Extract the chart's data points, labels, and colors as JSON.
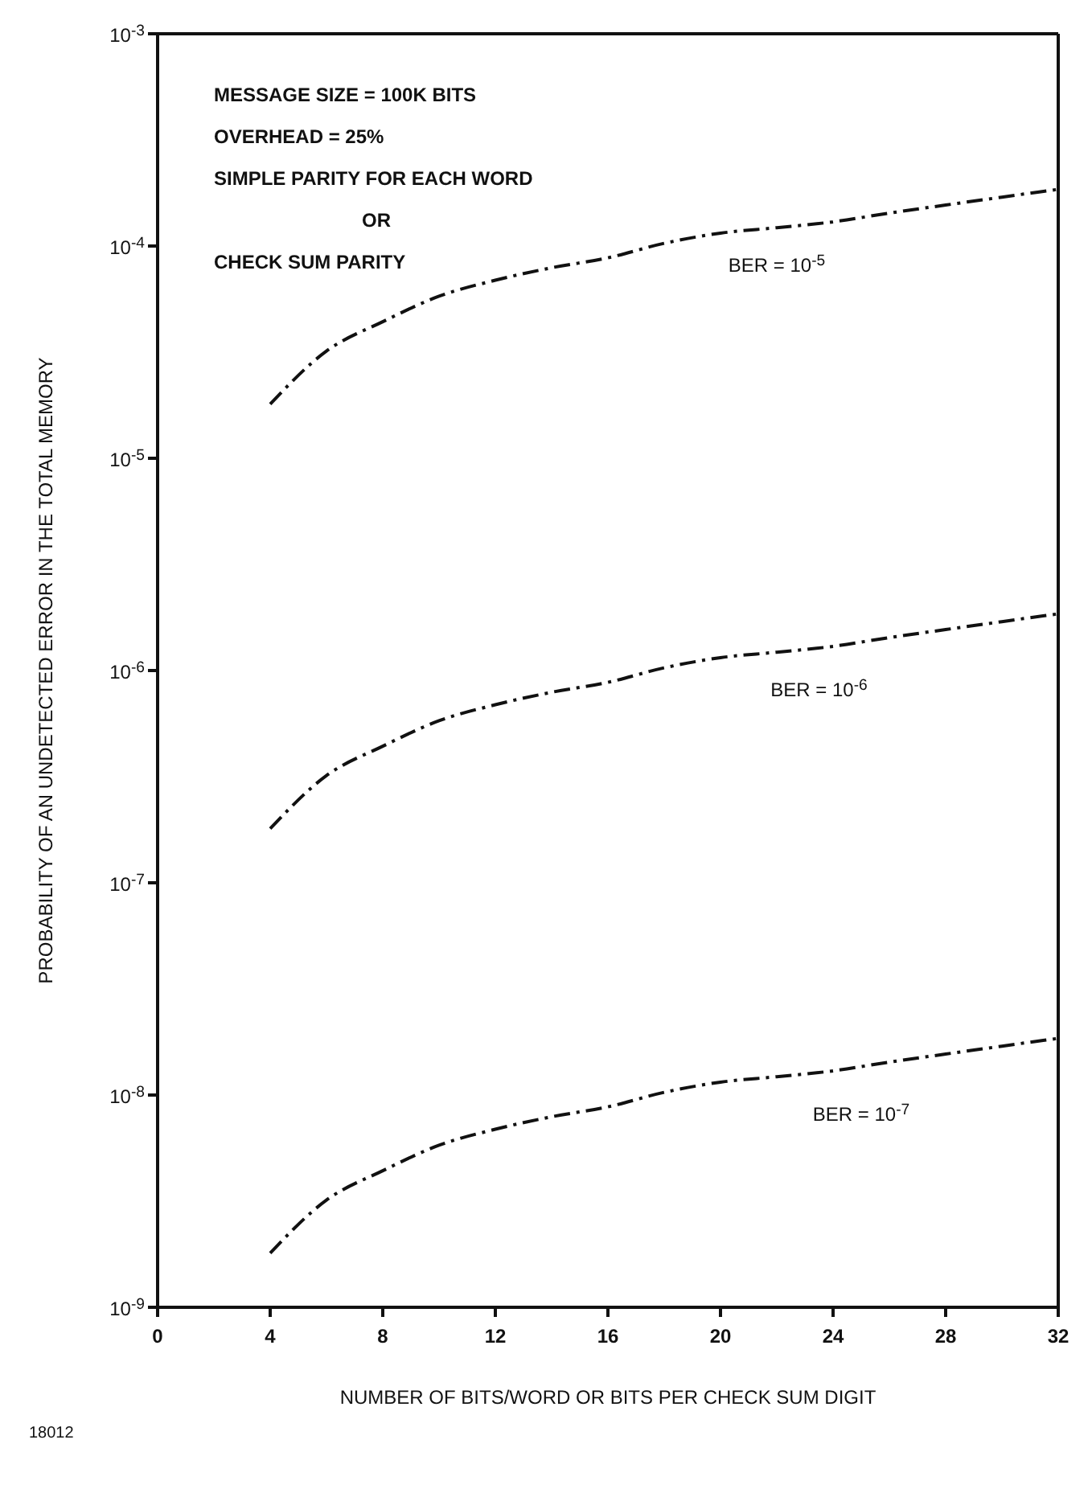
{
  "chart_data": {
    "type": "line",
    "xlabel": "NUMBER OF BITS/WORD OR BITS PER CHECK SUM DIGIT",
    "ylabel": "PROBABILITY OF AN UNDETECTED ERROR IN THE TOTAL MEMORY",
    "x": [
      4,
      6,
      8,
      10,
      12,
      14,
      16,
      18,
      20,
      22,
      24,
      26,
      28,
      30,
      32
    ],
    "series": [
      {
        "color": "#111111",
        "values": [
          1.8e-05,
          3.2e-05,
          4.4e-05,
          5.8e-05,
          6.9e-05,
          7.9e-05,
          8.8e-05,
          0.000103,
          0.000115,
          0.000122,
          0.00013,
          0.000143,
          0.000156,
          0.00017,
          0.000185
        ]
      },
      {
        "color": "#111111",
        "values": [
          1.8e-07,
          3.2e-07,
          4.4e-07,
          5.8e-07,
          6.9e-07,
          7.9e-07,
          8.8e-07,
          1.03e-06,
          1.15e-06,
          1.22e-06,
          1.3e-06,
          1.43e-06,
          1.56e-06,
          1.7e-06,
          1.85e-06
        ]
      },
      {
        "color": "#111111",
        "values": [
          1.8e-09,
          3.2e-09,
          4.4e-09,
          5.8e-09,
          6.9e-09,
          7.9e-09,
          8.8e-09,
          1.03e-08,
          1.15e-08,
          1.22e-08,
          1.3e-08,
          1.43e-08,
          1.56e-08,
          1.7e-08,
          1.85e-08
        ]
      }
    ],
    "xlim": [
      0,
      32
    ],
    "xticks": [
      0,
      4,
      8,
      12,
      16,
      20,
      24,
      28,
      32
    ],
    "ylim": [
      1e-09,
      0.001
    ],
    "yticks": [
      {
        "value": 1e-09,
        "label": "10$^{-9}$"
      },
      {
        "value": 1e-08,
        "label": "10$^{-8}$"
      },
      {
        "value": 1e-07,
        "label": "10$^{-7}$"
      },
      {
        "value": 1e-06,
        "label": "10$^{-6}$"
      },
      {
        "value": 1e-05,
        "label": "10$^{-5}$"
      },
      {
        "value": 0.0001,
        "label": "10$^{-4}$"
      },
      {
        "value": 0.001,
        "label": "10$^{-3}$"
      }
    ],
    "log": "y",
    "grid": false,
    "legend": false,
    "marker": "none",
    "line_style": "dashed",
    "annotations": [
      "MESSAGE SIZE = 100K BITS",
      "OVERHEAD = 25%",
      "SIMPLE PARITY FOR EACH WORD",
      "OR",
      "CHECK SUM PARITY",
      "BER = 10$^{-5}$",
      "BER = 10$^{-6}$",
      "BER = 10$^{-7}$",
      "18012"
    ]
  }
}
